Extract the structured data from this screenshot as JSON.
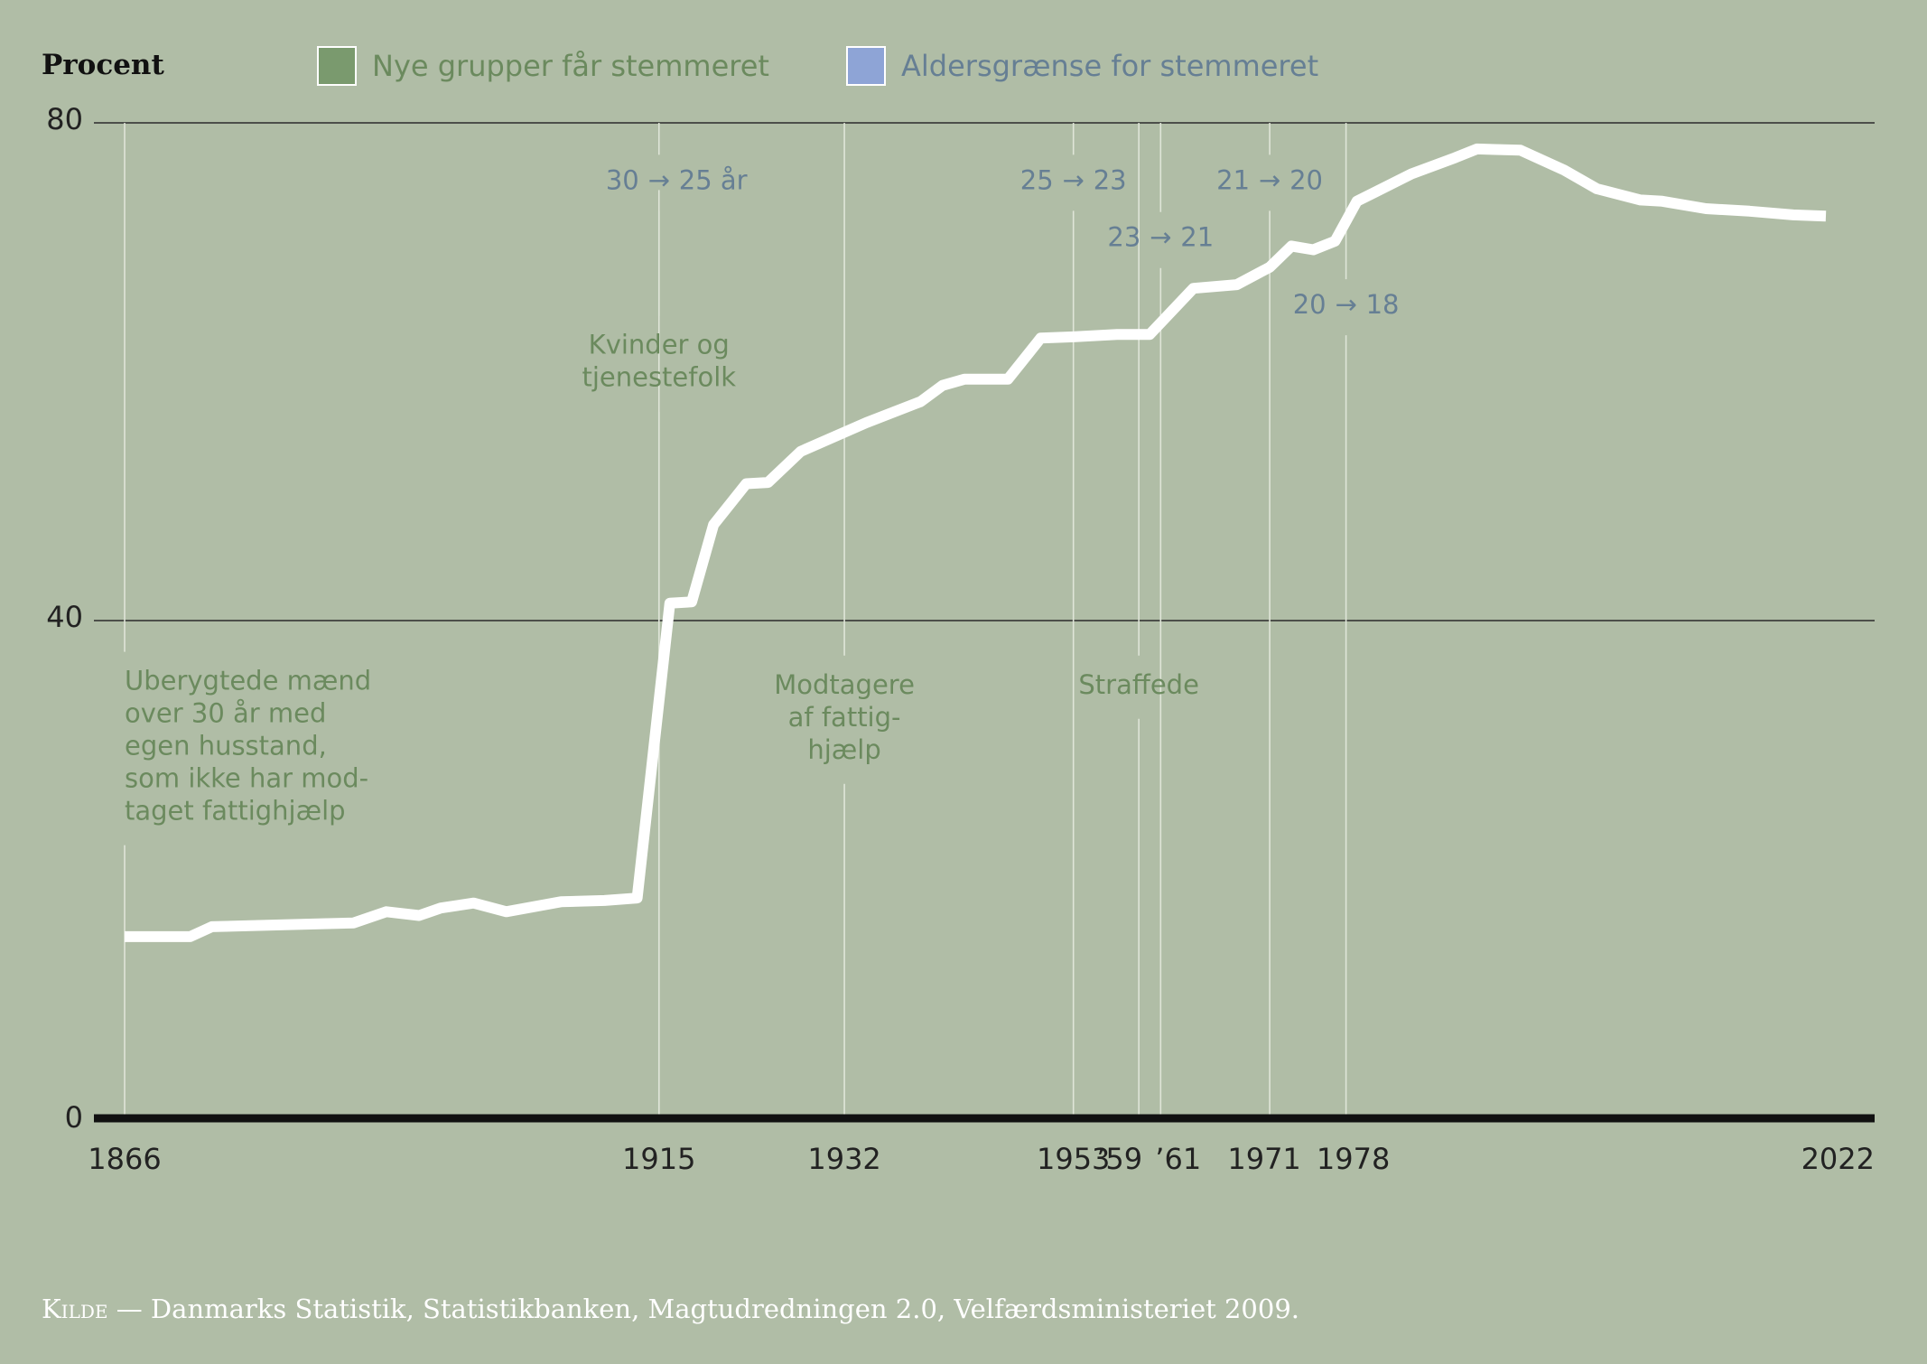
{
  "chart_data": {
    "type": "line",
    "ylabel": "Procent",
    "xlabel": "",
    "ylim": [
      0,
      80
    ],
    "xlim": [
      1866,
      2022
    ],
    "yticks": [
      0,
      40,
      80
    ],
    "xtick_labels": [
      {
        "year": 1866,
        "label": "1866"
      },
      {
        "year": 1915,
        "label": "1915"
      },
      {
        "year": 1932,
        "label": "1932"
      },
      {
        "year": 1953,
        "label": "1953"
      },
      {
        "year": 1959,
        "label": "’59"
      },
      {
        "year": 1961,
        "label": "’61"
      },
      {
        "year": 1971,
        "label": "1971"
      },
      {
        "year": 1978,
        "label": "1978"
      },
      {
        "year": 2022,
        "label": "2022"
      }
    ],
    "grid": "horizontal",
    "legend": [
      {
        "label": "Nye grupper får stemmeret",
        "color": "#7a9a6e"
      },
      {
        "label": "Aldersgrænse for stemmeret",
        "color": "#8ea4d6"
      }
    ],
    "series": [
      {
        "line_color": "#ffffff",
        "x": [
          1866,
          1872,
          1874,
          1887,
          1890,
          1893,
          1895,
          1898,
          1901,
          1906,
          1910,
          1913,
          1916,
          1918,
          1920,
          1923,
          1925,
          1928,
          1934,
          1939,
          1941,
          1943,
          1947,
          1950,
          1953,
          1957,
          1960,
          1964,
          1968,
          1971,
          1973,
          1975,
          1977,
          1979,
          1984,
          1988,
          1990,
          1994,
          1998,
          2001,
          2005,
          2007,
          2011,
          2015,
          2019,
          2022
        ],
        "y": [
          14.6,
          14.6,
          15.4,
          15.7,
          16.6,
          16.3,
          16.9,
          17.3,
          16.6,
          17.4,
          17.5,
          17.7,
          41.4,
          41.5,
          47.7,
          51.0,
          51.1,
          53.6,
          55.9,
          57.6,
          58.9,
          59.4,
          59.4,
          62.7,
          62.8,
          63.0,
          63.0,
          66.7,
          67.0,
          68.4,
          70.1,
          69.8,
          70.5,
          73.7,
          75.9,
          77.2,
          77.9,
          77.8,
          76.2,
          74.7,
          73.8,
          73.7,
          73.1,
          72.9,
          72.6,
          72.5
        ]
      }
    ],
    "reference_lines": [
      {
        "year": 1866,
        "kind": "group",
        "label": "Uberygtede mænd over 30 år med egen husstand, som ikke har modtaget fattighjælp",
        "lines": [
          "Uberygtede mænd",
          "over 30 år med",
          "egen husstand,",
          "som ikke har mod-",
          "taget fattighjælp"
        ],
        "top_value": 80,
        "label_y": 34.0
      },
      {
        "year": 1915,
        "kind": "group",
        "label": "Kvinder og tjenestefolk",
        "lines": [
          "Kvinder og",
          "tjenestefolk"
        ],
        "top_value": 74.6,
        "label_y": 61.0
      },
      {
        "year": 1915,
        "kind": "age",
        "label": "30 → 25 år",
        "lines": [],
        "top_value": 80,
        "label_y": 75.4
      },
      {
        "year": 1932,
        "kind": "group",
        "label": "Modtagere af fattighjælp",
        "lines": [
          "Modtagere",
          "af fattig-",
          "hjælp"
        ],
        "top_value": 80,
        "label_y": 33.7
      },
      {
        "year": 1953,
        "kind": "age",
        "label": "25 → 23",
        "lines": [],
        "top_value": 80,
        "label_y": 75.4
      },
      {
        "year": 1959,
        "kind": "group",
        "label": "Straffede",
        "lines": [
          "Straffede"
        ],
        "top_value": 80,
        "label_y": 33.7
      },
      {
        "year": 1961,
        "kind": "age",
        "label": "23 → 21",
        "lines": [],
        "top_value": 80,
        "label_y": 70.8
      },
      {
        "year": 1971,
        "kind": "age",
        "label": "21 → 20",
        "lines": [],
        "top_value": 80,
        "label_y": 75.4
      },
      {
        "year": 1978,
        "kind": "age",
        "label": "20 → 18",
        "lines": [],
        "top_value": 80,
        "label_y": 65.4
      }
    ],
    "age_arrows": [
      {
        "year": 1915,
        "from": "30",
        "to": "25 år"
      },
      {
        "year": 1953,
        "from": "25",
        "to": "23"
      },
      {
        "year": 1961,
        "from": "23",
        "to": "21"
      },
      {
        "year": 1971,
        "from": "21",
        "to": "20"
      },
      {
        "year": 1978,
        "from": "20",
        "to": "18"
      }
    ]
  },
  "source": {
    "prefix": "Kilde",
    "separator": " — ",
    "text": "Danmarks Statistik, Statistikbanken, Magtudredningen 2.0, Velfærdsministeriet 2009."
  }
}
